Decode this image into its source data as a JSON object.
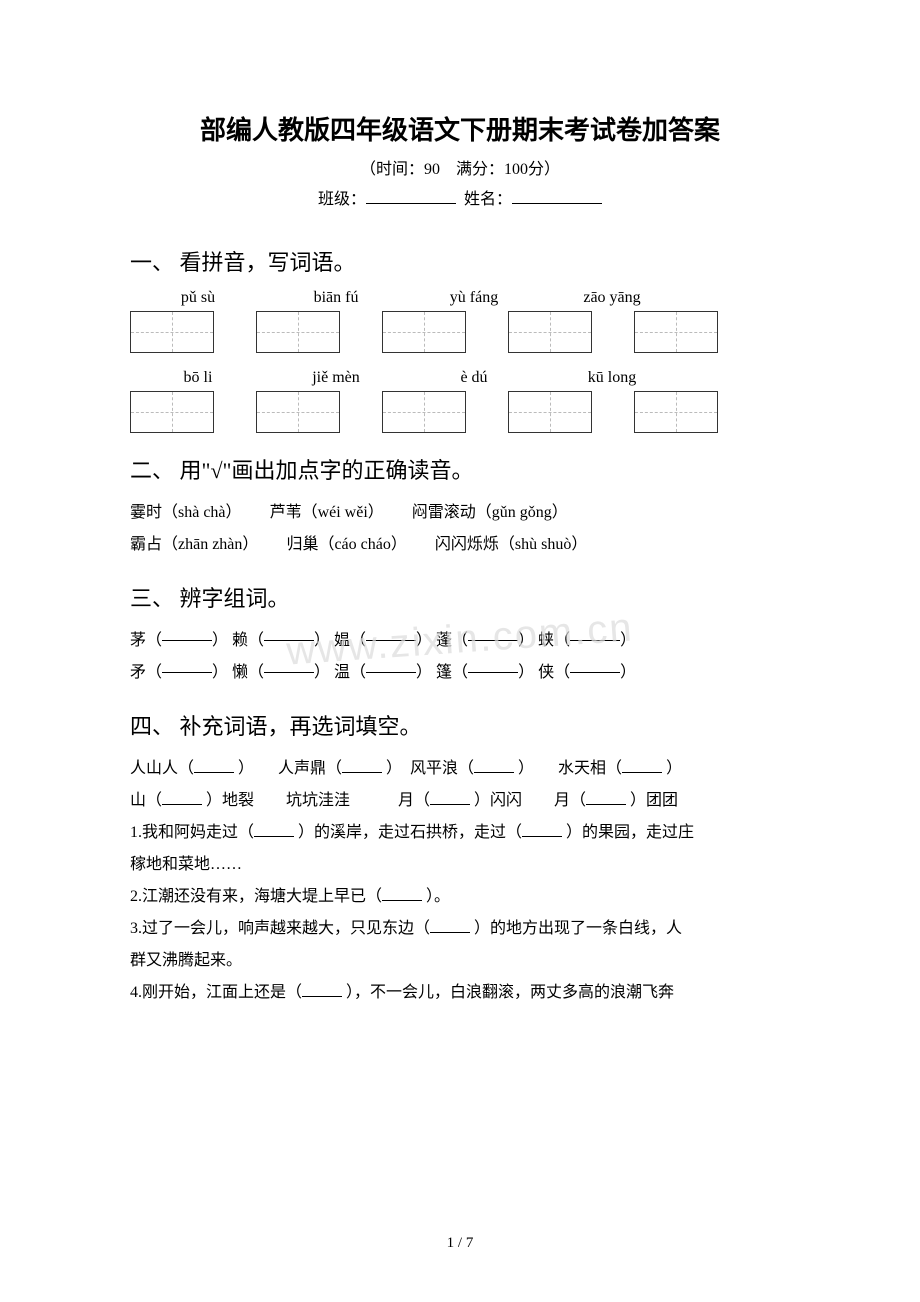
{
  "title": "部编人教版四年级语文下册期末考试卷加答案",
  "subtitle": "（时间：90　满分：100分）",
  "class_label": "班级：",
  "name_label": "姓名：",
  "section1": {
    "heading": "一、 看拼音，写词语。",
    "row1_pinyin": [
      "pǔ sù",
      "biān fú",
      "yù fáng",
      "zāo yāng"
    ],
    "row2_pinyin": [
      "bō li",
      "jiě mèn",
      "è dú",
      "kū long"
    ]
  },
  "section2": {
    "heading": "二、 用\"√\"画出加点字的正确读音。",
    "line1_a": "霎时（shà chà）",
    "line1_b": "芦苇（wéi wěi）",
    "line1_c": "闷雷滚动（gǔn gǒng）",
    "line2_a": "霸占（zhān zhàn）",
    "line2_b": "归巢（cáo cháo）",
    "line2_c": "闪闪烁烁（shù shuò）"
  },
  "section3": {
    "heading": "三、 辨字组词。",
    "row1": [
      "茅（",
      "） 赖（",
      "） 媪（",
      "） 蓬（",
      "） 蛱（",
      "）"
    ],
    "row2": [
      "矛（",
      "） 懒（",
      "） 温（",
      "） 篷（",
      "） 侠（",
      "）"
    ]
  },
  "section4": {
    "heading": "四、 补充词语，再选词填空。",
    "l1a": "人山人（",
    "l1b": "）　　人声鼎（",
    "l1c": "）　风平浪（",
    "l1d": "）　　水天相（",
    "l1e": "）",
    "l2a": "山（",
    "l2b": "）地裂　　坑坑洼洼　　　月（",
    "l2c": "）闪闪　　月（",
    "l2d": "）团团",
    "q1a": "1.我和阿妈走过（",
    "q1b": "）的溪岸，走过石拱桥，走过（",
    "q1c": "）的果园，走过庄",
    "q1d": "稼地和菜地……",
    "q2a": "2.江潮还没有来，海塘大堤上早已（",
    "q2b": "）。",
    "q3a": "3.过了一会儿，响声越来越大，只见东边（",
    "q3b": "）的地方出现了一条白线，人",
    "q3c": "群又沸腾起来。",
    "q4a": "4.刚开始，江面上还是（",
    "q4b": "），不一会儿，白浪翻滚，两丈多高的浪潮飞奔"
  },
  "watermark": "www.zixin.com.cn",
  "pagenum": "1 / 7"
}
